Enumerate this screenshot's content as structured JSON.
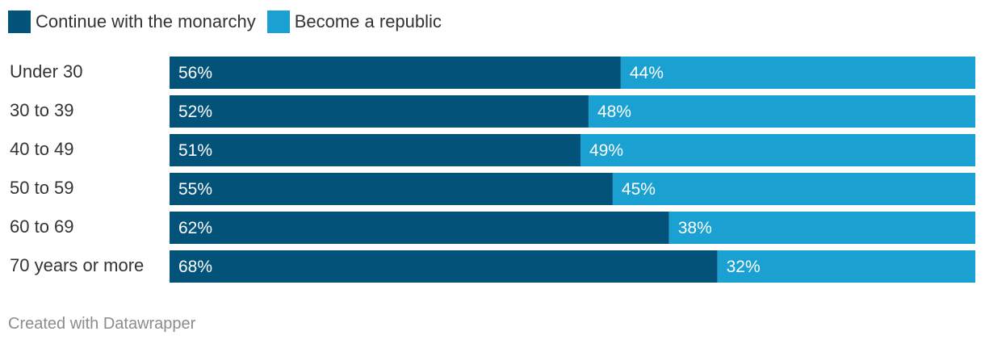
{
  "legend": [
    {
      "label": "Continue with the monarchy",
      "color": "#03527a"
    },
    {
      "label": "Become a republic",
      "color": "#1aa1d1"
    }
  ],
  "chart_data": {
    "type": "bar",
    "orientation": "horizontal",
    "stacked": true,
    "normalized": true,
    "categories": [
      "Under 30",
      "30 to 39",
      "40 to 49",
      "50 to 59",
      "60 to 69",
      "70 years or more"
    ],
    "series": [
      {
        "name": "Continue with the monarchy",
        "color": "#03527a",
        "values": [
          56,
          52,
          51,
          55,
          62,
          68
        ],
        "labels": [
          "56%",
          "52%",
          "51%",
          "55%",
          "62%",
          "68%"
        ]
      },
      {
        "name": "Become a republic",
        "color": "#1aa1d1",
        "values": [
          44,
          48,
          49,
          45,
          38,
          32
        ],
        "labels": [
          "44%",
          "48%",
          "49%",
          "45%",
          "38%",
          "32%"
        ]
      }
    ],
    "xlim": [
      0,
      100
    ],
    "grid": false,
    "legend_position": "top-left"
  },
  "footer": "Created with Datawrapper"
}
